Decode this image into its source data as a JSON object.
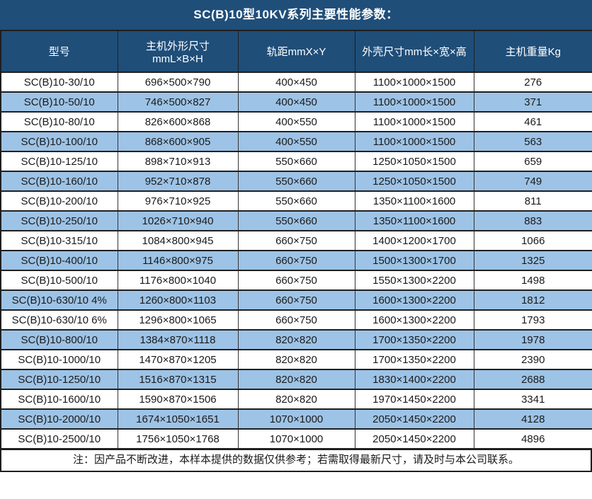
{
  "title": "SC(B)10型10KV系列主要性能参数：",
  "table": {
    "columns": [
      "型号",
      "主机外形尺寸\nmmL×B×H",
      "轨距mmX×Y",
      "外壳尺寸mm长×宽×高",
      "主机重量Kg"
    ],
    "rows": [
      [
        "SC(B)10-30/10",
        "696×500×790",
        "400×450",
        "1100×1000×1500",
        "276"
      ],
      [
        "SC(B)10-50/10",
        "746×500×827",
        "400×450",
        "1100×1000×1500",
        "371"
      ],
      [
        "SC(B)10-80/10",
        "826×600×868",
        "400×550",
        "1100×1000×1500",
        "461"
      ],
      [
        "SC(B)10-100/10",
        "868×600×905",
        "400×550",
        "1100×1000×1500",
        "563"
      ],
      [
        "SC(B)10-125/10",
        "898×710×913",
        "550×660",
        "1250×1050×1500",
        "659"
      ],
      [
        "SC(B)10-160/10",
        "952×710×878",
        "550×660",
        "1250×1050×1500",
        "749"
      ],
      [
        "SC(B)10-200/10",
        "976×710×925",
        "550×660",
        "1350×1100×1600",
        "811"
      ],
      [
        "SC(B)10-250/10",
        "1026×710×940",
        "550×660",
        "1350×1100×1600",
        "883"
      ],
      [
        "SC(B)10-315/10",
        "1084×800×945",
        "660×750",
        "1400×1200×1700",
        "1066"
      ],
      [
        "SC(B)10-400/10",
        "1146×800×975",
        "660×750",
        "1500×1300×1700",
        "1325"
      ],
      [
        "SC(B)10-500/10",
        "1176×800×1040",
        "660×750",
        "1550×1300×2200",
        "1498"
      ],
      [
        "SC(B)10-630/10 4%",
        "1260×800×1103",
        "660×750",
        "1600×1300×2200",
        "1812"
      ],
      [
        "SC(B)10-630/10 6%",
        "1296×800×1065",
        "660×750",
        "1600×1300×2200",
        "1793"
      ],
      [
        "SC(B)10-800/10",
        "1384×870×1118",
        "820×820",
        "1700×1350×2200",
        "1978"
      ],
      [
        "SC(B)10-1000/10",
        "1470×870×1205",
        "820×820",
        "1700×1350×2200",
        "2390"
      ],
      [
        "SC(B)10-1250/10",
        "1516×870×1315",
        "820×820",
        "1830×1400×2200",
        "2688"
      ],
      [
        "SC(B)10-1600/10",
        "1590×870×1506",
        "820×820",
        "1970×1450×2200",
        "3341"
      ],
      [
        "SC(B)10-2000/10",
        "1674×1050×1651",
        "1070×1000",
        "2050×1450×2200",
        "4128"
      ],
      [
        "SC(B)10-2500/10",
        "1756×1050×1768",
        "1070×1000",
        "2050×1450×2200",
        "4896"
      ]
    ]
  },
  "note": "注：因产品不断改进，本样本提供的数据仅供参考；若需取得最新尺寸，请及时与本公司联系。",
  "colors": {
    "header_bg": "#1F4E79",
    "header_text": "#FFFFFF",
    "row_bg": "#FFFFFF",
    "row_alt_bg": "#9DC3E6",
    "body_text": "#1A1A1A",
    "border": "#1F1F1F",
    "border_soft": "#333333"
  }
}
